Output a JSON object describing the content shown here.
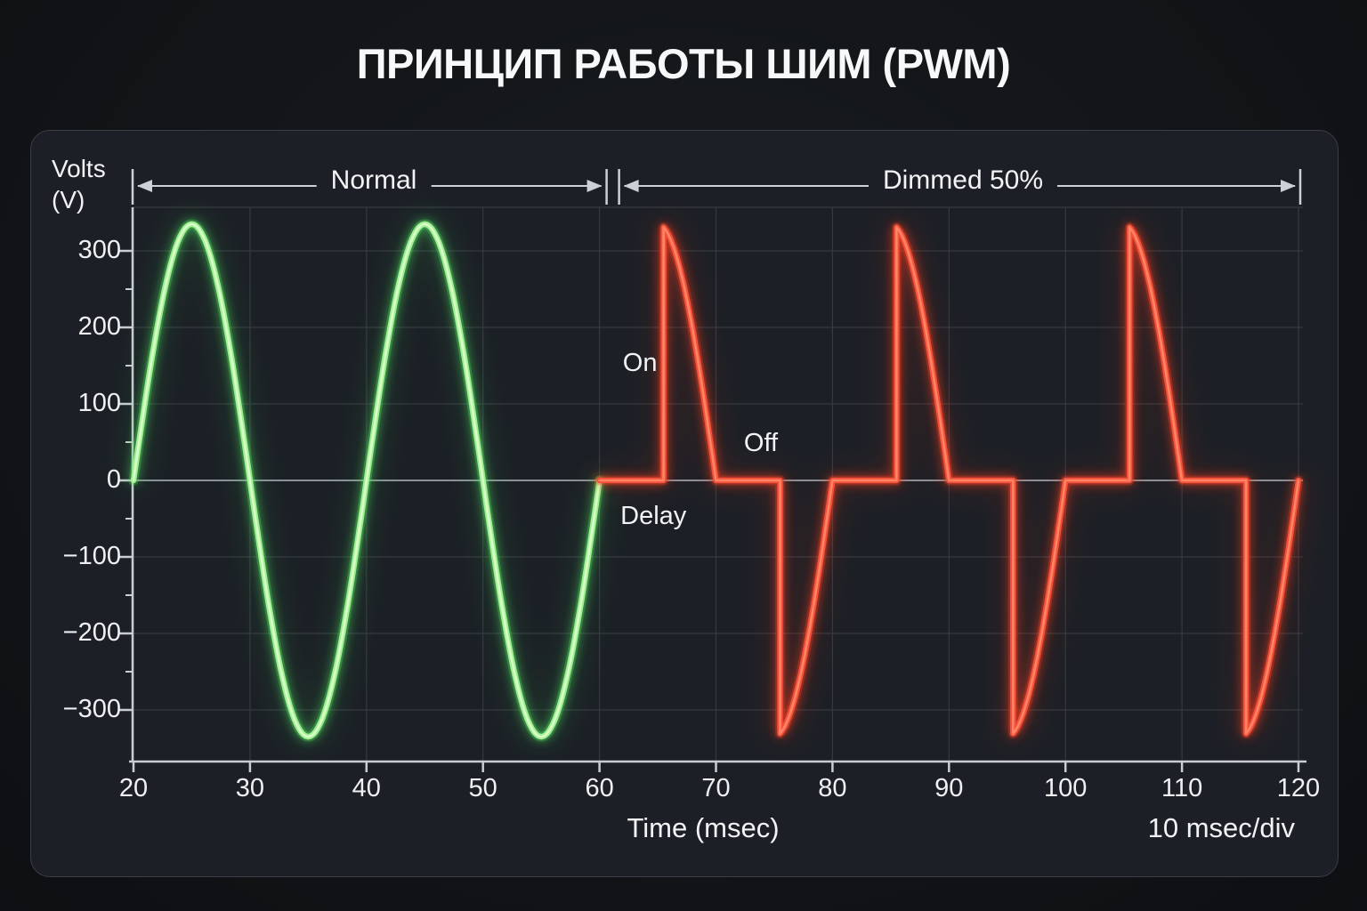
{
  "title": "ПРИНЦИП РАБОТЫ ШИМ (PWM)",
  "axis": {
    "ylabel_line1": "Volts",
    "ylabel_line2": "(V)"
  },
  "footer": {
    "xlabel": "Time (msec)",
    "div_note": "10 msec/div"
  },
  "region_brackets": [
    {
      "label": "Normal",
      "t_start": 20,
      "t_end": 60
    },
    {
      "label": "Dimmed 50%",
      "t_start": 60,
      "t_end": 120
    }
  ],
  "chart_data": {
    "type": "line",
    "title": "ПРИНЦИП РАБОТЫ ШИМ (PWM)",
    "xlabel": "Time (msec)",
    "ylabel": "Volts (V)",
    "x_unit": "msec",
    "scale_note": "10 msec/div",
    "x_range": [
      20,
      120
    ],
    "y_range": [
      -350,
      350
    ],
    "x_ticks": [
      20,
      30,
      40,
      50,
      60,
      70,
      80,
      90,
      100,
      110,
      120
    ],
    "y_ticks": [
      300,
      200,
      100,
      0,
      -100,
      -200,
      -300
    ],
    "y_minor_ticks": [
      250,
      150,
      50,
      -50,
      -150,
      -250
    ],
    "grid": true,
    "amplitude_volts": 335,
    "period_msec": 20,
    "series": [
      {
        "name": "Normal",
        "color": "#9ef08f",
        "shape": "sine",
        "t_start": 20,
        "t_end": 60,
        "cycles": 2,
        "description": "Full mains sine wave, amplitude ±335 V, period 20 msec"
      },
      {
        "name": "Dimmed 50%",
        "color": "#f4503a",
        "shape": "phase_controlled_sine",
        "t_start": 60,
        "t_end": 120,
        "fire_offset_msec": 5.5,
        "description": "Phase-cut (PWM) sine: output held at 0 V during delay, fires near each half-cycle peak, conducts to zero crossing"
      }
    ],
    "annotations": [
      {
        "label": "On",
        "t": 62.0,
        "v": 152
      },
      {
        "label": "Off",
        "t": 72.4,
        "v": 48
      },
      {
        "label": "Delay",
        "t": 61.8,
        "v": -48
      }
    ]
  }
}
